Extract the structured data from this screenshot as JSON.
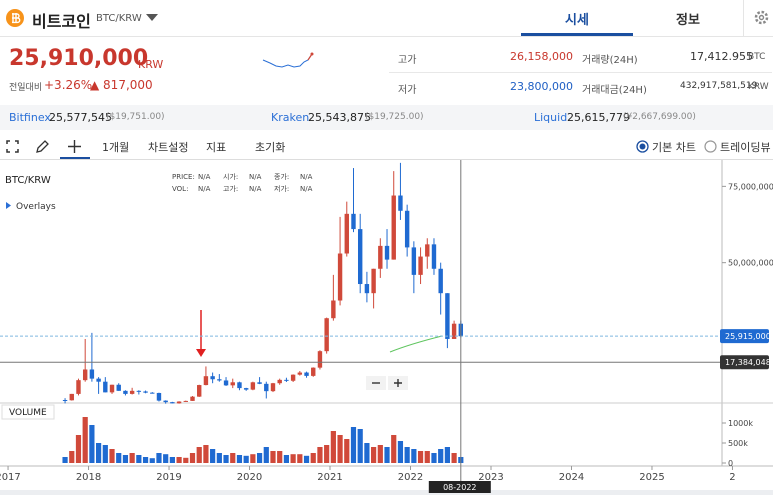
{
  "header": {
    "coin_name": "비트코인",
    "pair": "BTC/KRW",
    "tabs": [
      "시세",
      "정보"
    ]
  },
  "price": {
    "current": "25,910,000",
    "unit": "KRW",
    "change_label": "전일대비",
    "change_pct": "+3.26%",
    "change_amt": "▲ 817,000"
  },
  "stats": [
    {
      "label": "고가",
      "value": "26,158,000",
      "label2": "거래량(24H)",
      "value2": "17,412.955",
      "unit2": "BTC"
    },
    {
      "label": "저가",
      "value": "23,800,000",
      "label2": "거래대금(24H)",
      "value2": "432,917,581,519",
      "unit2": "KRW"
    }
  ],
  "exchanges": [
    {
      "name": "Bitfinex",
      "price": "25,577,545",
      "usd": "($19,751.00)"
    },
    {
      "name": "Kraken",
      "price": "25,543,875",
      "usd": "($19,725.00)"
    },
    {
      "name": "Liquid",
      "price": "25,615,779",
      "usd": "(¥2,667,699.00)"
    }
  ],
  "toolbar": {
    "period": "1개월",
    "settings": "차트설정",
    "indicator": "지표",
    "reset": "초기화",
    "modes": [
      "기본 차트",
      "트레이딩뷰"
    ]
  },
  "chart_data": {
    "type": "candlestick",
    "title": "BTC/KRW",
    "overlays_label": "Overlays",
    "volume_label": "VOLUME",
    "info_legend": [
      {
        "label": "PRICE:",
        "value": "N/A"
      },
      {
        "label": "VOL:",
        "value": "N/A"
      },
      {
        "label": "시가:",
        "value": "N/A"
      },
      {
        "label": "고가:",
        "value": "N/A"
      },
      {
        "label": "종가:",
        "value": "N/A"
      },
      {
        "label": "저가:",
        "value": "N/A"
      }
    ],
    "up_color": "#d0493a",
    "down_color": "#1f6ad1",
    "x": [
      "09-2017",
      "10-2017",
      "11-2017",
      "12-2017",
      "01-2018",
      "02-2018",
      "03-2018",
      "04-2018",
      "05-2018",
      "06-2018",
      "07-2018",
      "08-2018",
      "09-2018",
      "10-2018",
      "11-2018",
      "12-2018",
      "01-2019",
      "02-2019",
      "03-2019",
      "04-2019",
      "05-2019",
      "06-2019",
      "07-2019",
      "08-2019",
      "09-2019",
      "10-2019",
      "11-2019",
      "12-2019",
      "01-2020",
      "02-2020",
      "03-2020",
      "04-2020",
      "05-2020",
      "06-2020",
      "07-2020",
      "08-2020",
      "09-2020",
      "10-2020",
      "11-2020",
      "12-2020",
      "01-2021",
      "02-2021",
      "03-2021",
      "04-2021",
      "05-2021",
      "06-2021",
      "07-2021",
      "08-2021",
      "09-2021",
      "10-2021",
      "11-2021",
      "12-2021",
      "01-2022",
      "02-2022",
      "03-2022",
      "04-2022",
      "05-2022",
      "06-2022",
      "07-2022",
      "08-2022"
    ],
    "open": [
      5000000,
      4900000,
      7000000,
      11500000,
      15000000,
      12000000,
      11000000,
      7500000,
      10000000,
      8000000,
      7000000,
      8000000,
      7800000,
      7400000,
      7300000,
      4800000,
      4300000,
      3900000,
      4500000,
      4700000,
      6100000,
      9900000,
      12800000,
      11800000,
      11400000,
      9800000,
      10800000,
      8900000,
      8400000,
      10800000,
      10300000,
      7900000,
      10500000,
      11600000,
      11300000,
      13300000,
      14000000,
      12900000,
      15600000,
      21000000,
      31800000,
      37600000,
      53000000,
      66000000,
      61000000,
      43000000,
      40000000,
      48000000,
      55500000,
      51000000,
      72000000,
      67000000,
      55000000,
      46000000,
      52000000,
      56000000,
      48000000,
      40000000,
      25000000,
      30000000
    ],
    "high": [
      5600000,
      7000000,
      12000000,
      25000000,
      27000000,
      12500000,
      12500000,
      10000000,
      10500000,
      8200000,
      9000000,
      8200000,
      8100000,
      7600000,
      7400000,
      4900000,
      4400000,
      4600000,
      4800000,
      6300000,
      10000000,
      16000000,
      14000000,
      13500000,
      12500000,
      12000000,
      11000000,
      9000000,
      11000000,
      12500000,
      11000000,
      10600000,
      12000000,
      12300000,
      13400000,
      14500000,
      14300000,
      15700000,
      21300000,
      32000000,
      46000000,
      65000000,
      70000000,
      81000000,
      66000000,
      47000000,
      48000000,
      58000000,
      61000000,
      80000000,
      82700000,
      69000000,
      57000000,
      55000000,
      58000000,
      58000000,
      50000000,
      40000000,
      31000000,
      31000000
    ],
    "low": [
      3900000,
      4800000,
      6500000,
      11000000,
      11000000,
      7000000,
      7500000,
      7000000,
      8000000,
      6500000,
      6800000,
      6800000,
      7200000,
      7100000,
      4500000,
      3800000,
      3900000,
      3800000,
      4400000,
      4700000,
      6000000,
      9800000,
      10500000,
      11000000,
      9600000,
      8900000,
      8200000,
      8000000,
      8200000,
      10200000,
      5500000,
      7600000,
      10000000,
      10900000,
      10900000,
      13000000,
      12300000,
      12600000,
      15000000,
      20200000,
      31000000,
      36000000,
      52000000,
      60000000,
      40000000,
      37000000,
      35000000,
      45000000,
      48000000,
      51000000,
      64000000,
      52000000,
      40000000,
      43000000,
      48000000,
      46000000,
      33000000,
      22000000,
      25000000,
      25500000
    ],
    "close": [
      4900000,
      7000000,
      11500000,
      15000000,
      12000000,
      11000000,
      7500000,
      10000000,
      8000000,
      7000000,
      8000000,
      7800000,
      7400000,
      7300000,
      4800000,
      4300000,
      3900000,
      4500000,
      4700000,
      6100000,
      9900000,
      12800000,
      11800000,
      11400000,
      9800000,
      10800000,
      8900000,
      8400000,
      10800000,
      10300000,
      7900000,
      10500000,
      11600000,
      11300000,
      13300000,
      14000000,
      12900000,
      15600000,
      21000000,
      31800000,
      37600000,
      53000000,
      66000000,
      61000000,
      43000000,
      40000000,
      48000000,
      55500000,
      51000000,
      72000000,
      67000000,
      55000000,
      46000000,
      52000000,
      56000000,
      48000000,
      40000000,
      25000000,
      30000000,
      25900000
    ],
    "volume": [
      150000,
      300000,
      700000,
      1150000,
      950000,
      500000,
      450000,
      350000,
      250000,
      200000,
      250000,
      200000,
      150000,
      120000,
      250000,
      220000,
      150000,
      150000,
      130000,
      250000,
      400000,
      450000,
      350000,
      250000,
      200000,
      250000,
      200000,
      180000,
      220000,
      250000,
      400000,
      300000,
      300000,
      200000,
      220000,
      220000,
      180000,
      250000,
      400000,
      450000,
      800000,
      700000,
      600000,
      900000,
      850000,
      500000,
      400000,
      450000,
      400000,
      700000,
      550000,
      400000,
      350000,
      300000,
      300000,
      250000,
      350000,
      400000,
      250000,
      150000
    ],
    "xlim": [
      2016.9,
      2025.87
    ],
    "xticks": [
      2017,
      2018,
      2019,
      2020,
      2021,
      2022,
      2023,
      2024,
      2025,
      {
        "value": 2026,
        "label": "2"
      }
    ],
    "ylim": [
      5000000,
      82000000
    ],
    "yticks": [
      {
        "value": 50000000,
        "label": "50,000,000"
      },
      {
        "value": 75000000,
        "label": "75,000,000"
      }
    ],
    "volume_ylim": [
      0,
      1450000
    ],
    "volume_yticks": [
      {
        "value": 0,
        "label": "0"
      },
      {
        "value": 500000,
        "label": "500k"
      },
      {
        "value": 1000000,
        "label": "1000k"
      }
    ],
    "price_marker": {
      "value": 25915000,
      "label": "25,915,000"
    },
    "crosshair": {
      "x": "08-2022",
      "value": 17384048,
      "label": "17,384,048"
    }
  }
}
